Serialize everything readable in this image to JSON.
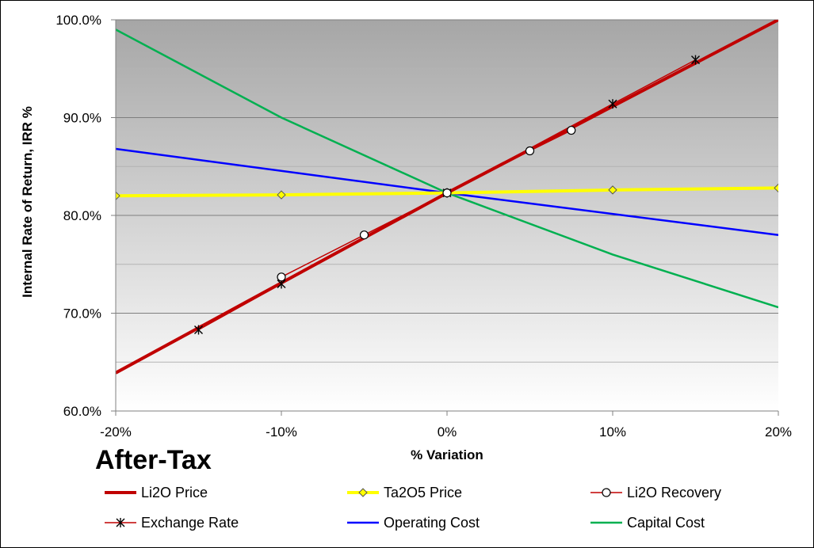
{
  "chart_data": {
    "type": "line",
    "title": "",
    "annotation": "After-Tax",
    "xlabel": "% Variation",
    "ylabel": "Internal Rate of Return, IRR %",
    "xlim": [
      -20,
      20
    ],
    "ylim": [
      60,
      100
    ],
    "x_ticks": [
      -20,
      -10,
      0,
      10,
      20
    ],
    "x_tick_labels": [
      "-20%",
      "-10%",
      "0%",
      "10%",
      "20%"
    ],
    "y_ticks": [
      60,
      70,
      80,
      90,
      100
    ],
    "y_tick_labels": [
      "60.0%",
      "70.0%",
      "80.0%",
      "90.0%",
      "100.0%"
    ],
    "minor_gridlines_y": [
      65,
      75,
      85,
      95
    ],
    "grid": true,
    "legend_position": "bottom",
    "series": [
      {
        "name": "Li2O Price",
        "color": "#c00000",
        "width": 4,
        "marker": "none",
        "x": [
          -20,
          0,
          20
        ],
        "y": [
          63.9,
          82.3,
          100.0
        ]
      },
      {
        "name": "Ta2O5 Price",
        "color": "#ffff00",
        "width": 4,
        "marker": "diamond",
        "x": [
          -20,
          -10,
          0,
          10,
          20
        ],
        "y": [
          82.0,
          82.1,
          82.3,
          82.6,
          82.8
        ]
      },
      {
        "name": "Li2O Recovery",
        "color": "#c00000",
        "width": 1.5,
        "marker": "circle",
        "x": [
          -10,
          -5,
          0,
          5,
          7.5
        ],
        "y": [
          73.7,
          78.0,
          82.3,
          86.6,
          88.7
        ]
      },
      {
        "name": "Exchange Rate",
        "color": "#c00000",
        "width": 1.5,
        "marker": "star",
        "x": [
          -15,
          -10,
          0,
          10,
          15
        ],
        "y": [
          68.3,
          73.0,
          82.3,
          91.4,
          95.9
        ]
      },
      {
        "name": "Operating Cost",
        "color": "#0000ff",
        "width": 2.5,
        "marker": "none",
        "x": [
          -20,
          0,
          20
        ],
        "y": [
          86.8,
          82.3,
          78.0
        ]
      },
      {
        "name": "Capital Cost",
        "color": "#00b050",
        "width": 2.5,
        "marker": "none",
        "x": [
          -20,
          -10,
          0,
          10,
          20
        ],
        "y": [
          99.0,
          90.0,
          82.3,
          76.0,
          70.6
        ]
      }
    ]
  }
}
